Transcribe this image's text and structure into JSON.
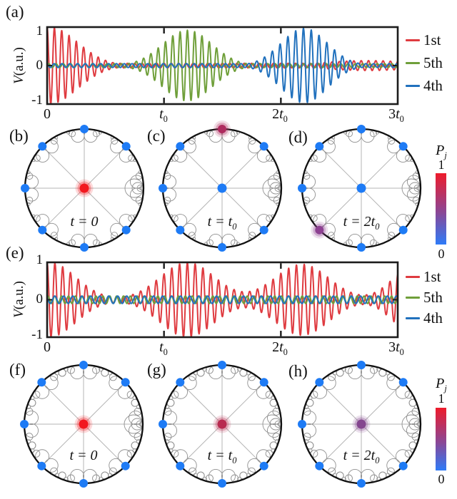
{
  "chart_data": {
    "waves": [
      {
        "panel_label": "(a)",
        "type": "line",
        "ylabel": {
          "var": "V",
          "rest": "(a.u.)"
        },
        "ylim": [
          -1,
          1
        ],
        "x_range_in_t0": [
          0,
          3
        ],
        "grid": false,
        "legend_position": "right-outside",
        "y_tick_labels": [
          "1",
          "0",
          "-1"
        ],
        "x_tick_labels": [
          {
            "num": "0",
            "var": "",
            "sub": ""
          },
          {
            "num": "",
            "var": "t",
            "sub": "0"
          },
          {
            "num": "2",
            "var": "t",
            "sub": "0"
          },
          {
            "num": "3",
            "var": "t",
            "sub": "0"
          }
        ],
        "series": [
          {
            "name": "1st",
            "color": "#df3b40",
            "carrier_cycles_per_t0": 16,
            "phase_rad": 1.5708,
            "baseline_amp": 0.06,
            "packets": [
              {
                "center": 0.02,
                "width": 0.34,
                "amp": 1.0
              },
              {
                "center": 2.75,
                "width": 0.55,
                "amp": 0.13
              }
            ]
          },
          {
            "name": "5th",
            "color": "#6f9f3a",
            "carrier_cycles_per_t0": 16,
            "phase_rad": 0.3,
            "baseline_amp": 0.05,
            "packets": [
              {
                "center": 1.2,
                "width": 0.3,
                "amp": 0.92
              }
            ]
          },
          {
            "name": "4th",
            "color": "#2171bd",
            "carrier_cycles_per_t0": 15,
            "phase_rad": 2.2,
            "baseline_amp": 0.05,
            "packets": [
              {
                "center": 2.2,
                "width": 0.28,
                "amp": 0.97
              }
            ]
          }
        ]
      },
      {
        "panel_label": "(e)",
        "type": "line",
        "ylabel": {
          "var": "V",
          "rest": "(a.u.)"
        },
        "ylim": [
          -1,
          1
        ],
        "x_range_in_t0": [
          0,
          3
        ],
        "grid": false,
        "legend_position": "right-outside",
        "y_tick_labels": [
          "1",
          "0",
          "-1"
        ],
        "x_tick_labels": [
          {
            "num": "0",
            "var": "",
            "sub": ""
          },
          {
            "num": "",
            "var": "t",
            "sub": "0"
          },
          {
            "num": "2",
            "var": "t",
            "sub": "0"
          },
          {
            "num": "3",
            "var": "t",
            "sub": "0"
          }
        ],
        "series": [
          {
            "name": "1st",
            "color": "#df3b40",
            "carrier_cycles_per_t0": 15,
            "phase_rad": 1.5708,
            "baseline_amp": 0.05,
            "packets": [
              {
                "center": 0.02,
                "width": 0.32,
                "amp": 1.0
              },
              {
                "center": 1.2,
                "width": 0.33,
                "amp": 1.0
              },
              {
                "center": 2.18,
                "width": 0.33,
                "amp": 0.95
              },
              {
                "center": 3.12,
                "width": 0.25,
                "amp": 0.85
              }
            ]
          },
          {
            "name": "5th",
            "color": "#6f9f3a",
            "carrier_cycles_per_t0": 17,
            "phase_rad": 0.9,
            "baseline_amp": 0.1,
            "packets": [
              {
                "center": 1.6,
                "width": 1.2,
                "amp": 0.05
              }
            ]
          },
          {
            "name": "4th",
            "color": "#2171bd",
            "carrier_cycles_per_t0": 13,
            "phase_rad": 2.5,
            "baseline_amp": 0.1,
            "packets": [
              {
                "center": 2.2,
                "width": 1.0,
                "amp": 0.05
              }
            ]
          }
        ]
      }
    ],
    "node_graphs": [
      {
        "panel_label": "(b)",
        "row": 1,
        "time_label": {
          "main": "t = 0",
          "sub": ""
        },
        "center_node": {
          "p": 1.0,
          "color": "#f2181f",
          "glow": true
        },
        "rim_nodes": [
          {
            "angle_deg": 90,
            "p": 0,
            "color": "#1e7bf5"
          },
          {
            "angle_deg": 45,
            "p": 0,
            "color": "#1e7bf5"
          },
          {
            "angle_deg": 135,
            "p": 0,
            "color": "#1e7bf5"
          },
          {
            "angle_deg": 180,
            "p": 0,
            "color": "#1e7bf5"
          },
          {
            "angle_deg": 225,
            "p": 0,
            "color": "#1e7bf5"
          },
          {
            "angle_deg": 270,
            "p": 0,
            "color": "#1e7bf5"
          },
          {
            "angle_deg": 315,
            "p": 0,
            "color": "#1e7bf5"
          }
        ],
        "port_angle_deg": 0
      },
      {
        "panel_label": "(c)",
        "row": 1,
        "time_label": {
          "main": "t = t",
          "sub": "0"
        },
        "center_node": {
          "p": 0,
          "color": "#1e7bf5",
          "glow": false
        },
        "rim_nodes": [
          {
            "angle_deg": 90,
            "p": 0.8,
            "color": "#ae2a5e",
            "glow": true
          },
          {
            "angle_deg": 45,
            "p": 0,
            "color": "#1e7bf5"
          },
          {
            "angle_deg": 135,
            "p": 0,
            "color": "#1e7bf5"
          },
          {
            "angle_deg": 180,
            "p": 0,
            "color": "#1e7bf5"
          },
          {
            "angle_deg": 225,
            "p": 0,
            "color": "#1e7bf5"
          },
          {
            "angle_deg": 270,
            "p": 0,
            "color": "#1e7bf5"
          },
          {
            "angle_deg": 315,
            "p": 0,
            "color": "#1e7bf5"
          }
        ],
        "port_angle_deg": 0
      },
      {
        "panel_label": "(d)",
        "row": 1,
        "time_label": {
          "main": "t = 2t",
          "sub": "0"
        },
        "center_node": {
          "p": 0,
          "color": "#1e7bf5",
          "glow": false
        },
        "rim_nodes": [
          {
            "angle_deg": 90,
            "p": 0,
            "color": "#1e7bf5"
          },
          {
            "angle_deg": 45,
            "p": 0,
            "color": "#1e7bf5"
          },
          {
            "angle_deg": 135,
            "p": 0,
            "color": "#1e7bf5"
          },
          {
            "angle_deg": 180,
            "p": 0,
            "color": "#1e7bf5"
          },
          {
            "angle_deg": 225,
            "p": 0.55,
            "color": "#8d4192",
            "glow": true
          },
          {
            "angle_deg": 270,
            "p": 0,
            "color": "#1e7bf5"
          },
          {
            "angle_deg": 315,
            "p": 0,
            "color": "#1e7bf5"
          }
        ],
        "port_angle_deg": 0
      },
      {
        "panel_label": "(f)",
        "row": 2,
        "time_label": {
          "main": "t = 0",
          "sub": ""
        },
        "center_node": {
          "p": 1.0,
          "color": "#f2181f",
          "glow": true
        },
        "rim_nodes": [
          {
            "angle_deg": 90,
            "p": 0,
            "color": "#1e7bf5"
          },
          {
            "angle_deg": 45,
            "p": 0,
            "color": "#1e7bf5"
          },
          {
            "angle_deg": 135,
            "p": 0,
            "color": "#1e7bf5"
          },
          {
            "angle_deg": 180,
            "p": 0,
            "color": "#1e7bf5"
          },
          {
            "angle_deg": 225,
            "p": 0,
            "color": "#1e7bf5"
          },
          {
            "angle_deg": 270,
            "p": 0,
            "color": "#1e7bf5"
          },
          {
            "angle_deg": 315,
            "p": 0,
            "color": "#1e7bf5"
          }
        ],
        "port_angle_deg": 0
      },
      {
        "panel_label": "(g)",
        "row": 2,
        "time_label": {
          "main": "t = t",
          "sub": "0"
        },
        "center_node": {
          "p": 0.85,
          "color": "#b82a50",
          "glow": true
        },
        "rim_nodes": [
          {
            "angle_deg": 90,
            "p": 0,
            "color": "#1e7bf5"
          },
          {
            "angle_deg": 45,
            "p": 0,
            "color": "#1e7bf5"
          },
          {
            "angle_deg": 135,
            "p": 0,
            "color": "#1e7bf5"
          },
          {
            "angle_deg": 180,
            "p": 0,
            "color": "#1e7bf5"
          },
          {
            "angle_deg": 225,
            "p": 0,
            "color": "#1e7bf5"
          },
          {
            "angle_deg": 270,
            "p": 0,
            "color": "#1e7bf5"
          },
          {
            "angle_deg": 315,
            "p": 0,
            "color": "#1e7bf5"
          }
        ],
        "port_angle_deg": 0
      },
      {
        "panel_label": "(h)",
        "row": 2,
        "time_label": {
          "main": "t = 2t",
          "sub": "0"
        },
        "center_node": {
          "p": 0.6,
          "color": "#84458f",
          "glow": true
        },
        "rim_nodes": [
          {
            "angle_deg": 90,
            "p": 0,
            "color": "#1e7bf5"
          },
          {
            "angle_deg": 45,
            "p": 0,
            "color": "#1e7bf5"
          },
          {
            "angle_deg": 135,
            "p": 0,
            "color": "#1e7bf5"
          },
          {
            "angle_deg": 180,
            "p": 0,
            "color": "#1e7bf5"
          },
          {
            "angle_deg": 225,
            "p": 0,
            "color": "#1e7bf5"
          },
          {
            "angle_deg": 270,
            "p": 0,
            "color": "#1e7bf5"
          },
          {
            "angle_deg": 315,
            "p": 0,
            "color": "#1e7bf5"
          }
        ],
        "port_angle_deg": 0
      }
    ],
    "colorbar": {
      "label_main": "P",
      "label_sub": "j",
      "top_tick": "1",
      "bottom_tick": "0",
      "gradient_top_to_bottom": [
        "#ee1b2b",
        "#8a4796",
        "#2e7bf8"
      ]
    }
  }
}
